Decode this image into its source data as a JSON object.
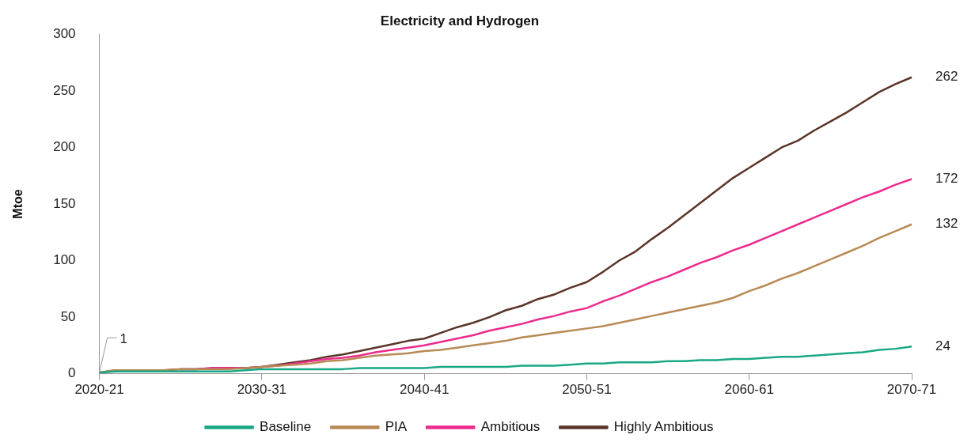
{
  "chart_data": {
    "type": "line",
    "title": "Electricity and Hydrogen",
    "ylabel": "Mtoe",
    "categories": [
      "2020-21",
      null,
      null,
      null,
      null,
      null,
      null,
      null,
      null,
      null,
      "2030-31",
      null,
      null,
      null,
      null,
      null,
      null,
      null,
      null,
      null,
      "2040-41",
      null,
      null,
      null,
      null,
      null,
      null,
      null,
      null,
      null,
      "2050-51",
      null,
      null,
      null,
      null,
      null,
      null,
      null,
      null,
      null,
      "2060-61",
      null,
      null,
      null,
      null,
      null,
      null,
      null,
      null,
      null,
      "2070-71"
    ],
    "series": [
      {
        "name": "Baseline",
        "color": "#19a886",
        "values": [
          1,
          2,
          2,
          2,
          2,
          2,
          2,
          2,
          2,
          3,
          4,
          4,
          4,
          4,
          4,
          4,
          5,
          5,
          5,
          5,
          5,
          6,
          6,
          6,
          6,
          6,
          7,
          7,
          7,
          8,
          9,
          9,
          10,
          10,
          10,
          11,
          11,
          12,
          12,
          13,
          13,
          14,
          15,
          15,
          16,
          17,
          18,
          19,
          21,
          22,
          24
        ],
        "value_labels": [
          null,
          null,
          null,
          null,
          null,
          null,
          null,
          null,
          null,
          null,
          null,
          null,
          null,
          null,
          null,
          null,
          null,
          null,
          null,
          null,
          null,
          null,
          null,
          null,
          null,
          null,
          null,
          null,
          null,
          null,
          null,
          null,
          null,
          null,
          null,
          null,
          null,
          null,
          null,
          null,
          null,
          null,
          null,
          null,
          null,
          null,
          null,
          null,
          null,
          null,
          "24"
        ]
      },
      {
        "name": "PIA",
        "color": "#b88a55",
        "values": [
          1,
          3,
          3,
          3,
          3,
          4,
          4,
          4,
          4,
          5,
          6,
          7,
          8,
          9,
          11,
          12,
          14,
          16,
          17,
          18,
          20,
          21,
          23,
          25,
          27,
          29,
          32,
          34,
          36,
          38,
          40,
          42,
          45,
          48,
          51,
          54,
          57,
          60,
          63,
          67,
          73,
          78,
          84,
          89,
          95,
          101,
          107,
          113,
          120,
          126,
          132
        ],
        "value_labels": [
          null,
          null,
          null,
          null,
          null,
          null,
          null,
          null,
          null,
          null,
          null,
          null,
          null,
          null,
          null,
          null,
          null,
          null,
          null,
          null,
          null,
          null,
          null,
          null,
          null,
          null,
          null,
          null,
          null,
          null,
          null,
          null,
          null,
          null,
          null,
          null,
          null,
          null,
          null,
          null,
          null,
          null,
          null,
          null,
          null,
          null,
          null,
          null,
          null,
          null,
          "132"
        ]
      },
      {
        "name": "Ambitious",
        "color": "#ee2a8e",
        "values": [
          null,
          null,
          null,
          null,
          null,
          4,
          4,
          5,
          5,
          5,
          6,
          7,
          9,
          11,
          13,
          14,
          16,
          19,
          21,
          23,
          25,
          28,
          31,
          34,
          38,
          41,
          44,
          48,
          51,
          55,
          58,
          64,
          69,
          75,
          81,
          86,
          92,
          98,
          103,
          109,
          114,
          120,
          126,
          132,
          138,
          144,
          150,
          156,
          161,
          167,
          172
        ],
        "value_labels": [
          null,
          null,
          null,
          null,
          null,
          null,
          null,
          null,
          null,
          null,
          null,
          null,
          null,
          null,
          null,
          null,
          null,
          null,
          null,
          null,
          null,
          null,
          null,
          null,
          null,
          null,
          null,
          null,
          null,
          null,
          null,
          null,
          null,
          null,
          null,
          null,
          null,
          null,
          null,
          null,
          null,
          null,
          null,
          null,
          null,
          null,
          null,
          null,
          null,
          null,
          "172"
        ]
      },
      {
        "name": "Highly Ambitious",
        "color": "#5a3528",
        "values": [
          1,
          3,
          3,
          3,
          3,
          4,
          4,
          5,
          5,
          5,
          6,
          8,
          10,
          12,
          15,
          17,
          20,
          23,
          26,
          29,
          31,
          36,
          41,
          45,
          50,
          56,
          60,
          66,
          70,
          76,
          81,
          90,
          100,
          108,
          119,
          129,
          140,
          151,
          162,
          173,
          182,
          191,
          200,
          206,
          215,
          223,
          231,
          240,
          249,
          256,
          262
        ],
        "value_labels": [
          null,
          null,
          null,
          null,
          null,
          null,
          null,
          null,
          null,
          null,
          null,
          null,
          null,
          null,
          null,
          null,
          null,
          null,
          null,
          null,
          null,
          null,
          null,
          null,
          null,
          null,
          null,
          null,
          null,
          null,
          null,
          null,
          null,
          null,
          null,
          null,
          null,
          null,
          null,
          null,
          null,
          null,
          null,
          null,
          null,
          null,
          null,
          null,
          null,
          null,
          "262"
        ]
      }
    ],
    "annotations": [
      {
        "text": "1",
        "x": "2020-21",
        "y": 1
      }
    ],
    "ylim": [
      0,
      300
    ],
    "yticks": [
      0,
      50,
      100,
      150,
      200,
      250,
      300
    ],
    "grid": false,
    "legend": "bottom",
    "marker": "none",
    "line_style": "solid"
  }
}
